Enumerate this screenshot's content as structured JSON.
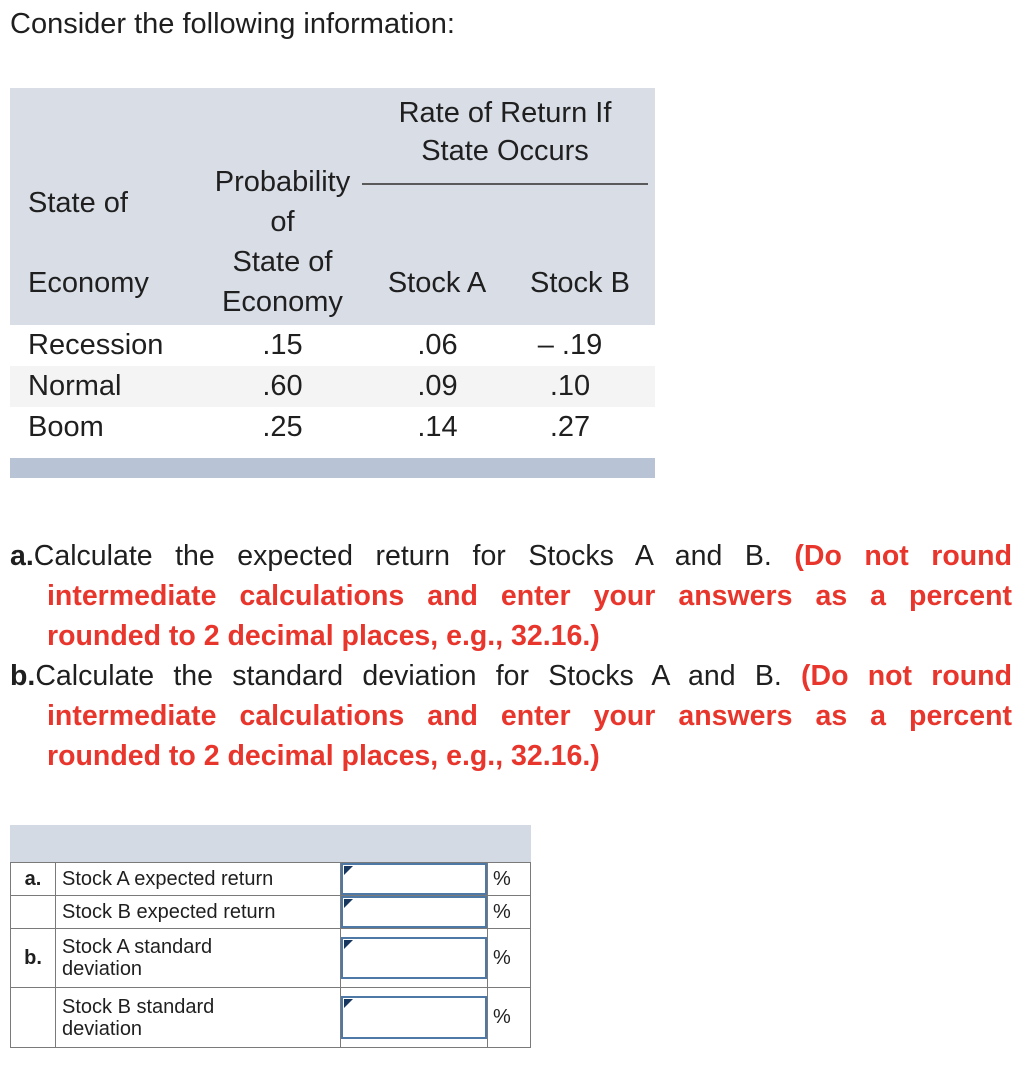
{
  "intro": "Consider the following information:",
  "info_table": {
    "header": {
      "rate_line1": "Rate of Return If",
      "rate_line2": "State Occurs",
      "state_l1": "State of",
      "state_l2": "Economy",
      "prob_l1": "Probability",
      "prob_l2": "of",
      "prob_l3": "State of",
      "prob_l4": "Economy",
      "stock_a": "Stock A",
      "stock_b": "Stock B"
    },
    "rows": [
      {
        "state": "Recession",
        "prob": ".15",
        "stock_a": ".06",
        "stock_b": "– .19"
      },
      {
        "state": "Normal",
        "prob": ".60",
        "stock_a": ".09",
        "stock_b": ".10"
      },
      {
        "state": "Boom",
        "prob": ".25",
        "stock_a": ".14",
        "stock_b": ".27"
      }
    ]
  },
  "questions": [
    {
      "label": "a.",
      "text": "Calculate the expected return for Stocks A and B. ",
      "emphasis": "(Do not round intermediate calculations and enter your answers as a percent rounded to 2 decimal places, e.g., 32.16.)"
    },
    {
      "label": "b.",
      "text": "Calculate the standard deviation for Stocks A and B. ",
      "emphasis": "(Do not round intermediate calculations and enter your answers as a percent rounded to 2 decimal places, e.g., 32.16.)"
    }
  ],
  "answer_table": {
    "rows": [
      {
        "label": "a.",
        "desc": "Stock A expected return",
        "value": "",
        "unit": "%"
      },
      {
        "label": "",
        "desc": "Stock B expected return",
        "value": "",
        "unit": "%"
      },
      {
        "label": "b.",
        "desc": "Stock A standard deviation",
        "value": "",
        "unit": "%"
      },
      {
        "label": "",
        "desc": "Stock B standard deviation",
        "value": "",
        "unit": "%"
      }
    ]
  },
  "colors": {
    "table_header_bg": "#d8dde6",
    "table_alt_row": "#f4f4f4",
    "table_bottom_bar": "#b9c3d6",
    "emphasis_red": "#e8362d",
    "input_border_blue": "#4e79a7",
    "input_corner_marker": "#17375e",
    "answer_strip_bg": "#d3dae4"
  }
}
